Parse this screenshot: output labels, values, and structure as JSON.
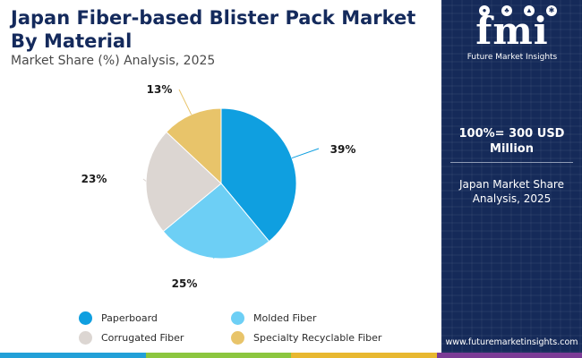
{
  "header": {
    "title_line1": "Japan Fiber-based Blister Pack Market",
    "title_line2": "By Material",
    "subtitle": "Market Share (%) Analysis, 2025"
  },
  "chart_data": {
    "type": "pie",
    "title": "Japan Fiber-based Blister Pack Market By Material",
    "subtitle": "Market Share (%) Analysis, 2025",
    "categories": [
      "Paperboard",
      "Molded Fiber",
      "Corrugated Fiber",
      "Specialty Recyclable Fiber"
    ],
    "values": [
      39,
      25,
      23,
      13
    ],
    "labels": [
      "39%",
      "25%",
      "23%",
      "13%"
    ],
    "colors": [
      "#0f9fe0",
      "#6dcff5",
      "#dcd6d2",
      "#e8c46a"
    ],
    "legend_position": "bottom",
    "start_angle_deg": 0,
    "direction": "clockwise"
  },
  "legend": [
    {
      "label": "Paperboard",
      "color": "#0f9fe0"
    },
    {
      "label": "Molded Fiber",
      "color": "#6dcff5"
    },
    {
      "label": "Corrugated Fiber",
      "color": "#dcd6d2"
    },
    {
      "label": "Specialty Recyclable Fiber",
      "color": "#e8c46a"
    }
  ],
  "sidebar": {
    "logo_text": "fmi",
    "logo_caption": "Future Market Insights",
    "total_value_line1": "100%= 300 USD",
    "total_value_line2": "Million",
    "region_line1": "Japan Market Share",
    "region_line2": "Analysis, 2025",
    "website": "www.futuremarketinsights.com",
    "background_color": "#152a59"
  },
  "bottom_bar_colors": [
    "#22a0d8",
    "#8cc63f",
    "#e8b830",
    "#7b3c96"
  ]
}
